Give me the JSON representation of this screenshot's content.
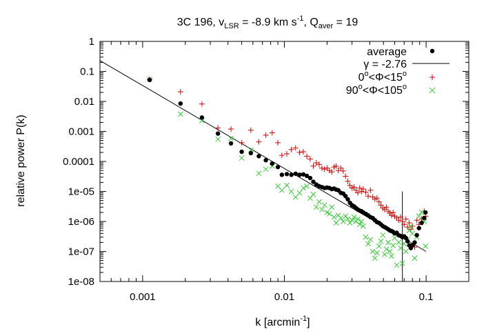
{
  "chart_data": {
    "type": "scatter",
    "title": {
      "prefix": "3C 196, v",
      "v_sub": "LSR",
      "mid": " = -8.9 km s",
      "sup": "-1",
      "q_text": ", Q",
      "q_sub": "aver",
      "q_val": " = 19"
    },
    "xlabel": {
      "main": "k [arcmin",
      "sup": "-1",
      "close": "]"
    },
    "ylabel": "relative power P(k)",
    "xscale": "log",
    "yscale": "log",
    "xlim": [
      0.0005,
      0.2
    ],
    "ylim": [
      1e-08,
      1
    ],
    "xticks": [
      {
        "value": 0.001,
        "label": "0.001"
      },
      {
        "value": 0.01,
        "label": "0.01"
      },
      {
        "value": 0.1,
        "label": "0.1"
      }
    ],
    "yticks": [
      {
        "value": 1,
        "label": "1"
      },
      {
        "value": 0.1,
        "label": "0.1"
      },
      {
        "value": 0.01,
        "label": "0.01"
      },
      {
        "value": 0.001,
        "label": "0.001"
      },
      {
        "value": 0.0001,
        "label": "0.0001"
      },
      {
        "value": 1e-05,
        "label": "1e-05"
      },
      {
        "value": 1e-06,
        "label": "1e-06"
      },
      {
        "value": 1e-07,
        "label": "1e-07"
      },
      {
        "value": 1e-08,
        "label": "1e-08"
      }
    ],
    "legend": {
      "placement": "top-right",
      "average": "average",
      "fit": {
        "gamma": "γ",
        "rest": " = -2.76"
      },
      "red": {
        "zero": "0",
        "deg": "o",
        "phi": "<Φ<15",
        "deg2": "o"
      },
      "green": {
        "ninety": "90",
        "deg": "o",
        "phi": "<Φ<105",
        "deg2": "o"
      }
    },
    "fit_line": {
      "name": "γ = -2.76",
      "slope": -2.76,
      "x": [
        0.0005,
        0.1
      ],
      "y": [
        0.23,
        1e-07
      ],
      "color": "#000000"
    },
    "cutoff_line": {
      "x": 0.068,
      "y_range": [
        1e-08,
        1e-05
      ],
      "color": "#000000"
    },
    "series": [
      {
        "name": "average",
        "marker": "dot",
        "color": "#000000",
        "points": [
          [
            0.00112,
            0.052
          ],
          [
            0.00185,
            0.0085
          ],
          [
            0.00262,
            0.0029
          ],
          [
            0.0034,
            0.00085
          ],
          [
            0.0042,
            0.0004
          ],
          [
            0.005,
            0.00021
          ],
          [
            0.0058,
            0.00019
          ],
          [
            0.0066,
            0.00015
          ],
          [
            0.0074,
            0.00011
          ],
          [
            0.0082,
            8.5e-05
          ],
          [
            0.009,
            6.5e-05
          ],
          [
            0.0096,
            3.6e-05
          ],
          [
            0.0104,
            3.8e-05
          ],
          [
            0.0112,
            3.6e-05
          ],
          [
            0.012,
            3.9e-05
          ],
          [
            0.0128,
            3.6e-05
          ],
          [
            0.0136,
            3.7e-05
          ],
          [
            0.0144,
            3.3e-05
          ],
          [
            0.0152,
            2.8e-05
          ],
          [
            0.016,
            2.1e-05
          ],
          [
            0.0168,
            1.7e-05
          ],
          [
            0.0176,
            1.5e-05
          ],
          [
            0.0184,
            1.4e-05
          ],
          [
            0.0192,
            1.3e-05
          ],
          [
            0.02,
            1.35e-05
          ],
          [
            0.0208,
            1.3e-05
          ],
          [
            0.0216,
            1.2e-05
          ],
          [
            0.0224,
            1.25e-05
          ],
          [
            0.0232,
            1.15e-05
          ],
          [
            0.024,
            1.1e-05
          ],
          [
            0.025,
            9e-06
          ],
          [
            0.026,
            8.5e-06
          ],
          [
            0.027,
            7e-06
          ],
          [
            0.028,
            5.5e-06
          ],
          [
            0.029,
            4.2e-06
          ],
          [
            0.03,
            3.5e-06
          ],
          [
            0.031,
            3.2e-06
          ],
          [
            0.032,
            2.8e-06
          ],
          [
            0.033,
            2.5e-06
          ],
          [
            0.034,
            2.3e-06
          ],
          [
            0.035,
            2.2e-06
          ],
          [
            0.036,
            2e-06
          ],
          [
            0.0375,
            1.8e-06
          ],
          [
            0.039,
            1.6e-06
          ],
          [
            0.0405,
            1.4e-06
          ],
          [
            0.042,
            1.3e-06
          ],
          [
            0.0435,
            1.1e-06
          ],
          [
            0.045,
            9.5e-07
          ],
          [
            0.0465,
            9e-07
          ],
          [
            0.048,
            8e-07
          ],
          [
            0.0495,
            7e-07
          ],
          [
            0.051,
            6.5e-07
          ],
          [
            0.0525,
            6e-07
          ],
          [
            0.054,
            5.5e-07
          ],
          [
            0.0555,
            5e-07
          ],
          [
            0.057,
            4.8e-07
          ],
          [
            0.0585,
            4.5e-07
          ],
          [
            0.06,
            4e-07
          ],
          [
            0.062,
            4.2e-07
          ],
          [
            0.064,
            3.5e-07
          ],
          [
            0.066,
            3.3e-07
          ],
          [
            0.068,
            3e-07
          ],
          [
            0.07,
            3.2e-07
          ],
          [
            0.072,
            2.8e-07
          ],
          [
            0.074,
            2.2e-07
          ],
          [
            0.076,
            1.6e-07
          ],
          [
            0.078,
            1.3e-07
          ],
          [
            0.08,
            1.6e-07
          ],
          [
            0.083,
            2e-07
          ],
          [
            0.086,
            3.5e-07
          ],
          [
            0.089,
            6e-07
          ],
          [
            0.093,
            9e-07
          ],
          [
            0.097,
            1.3e-06
          ],
          [
            0.099,
            2e-06
          ]
        ]
      },
      {
        "name": "0°<Φ<15°",
        "marker": "plus",
        "color": "#cc0000",
        "points": [
          [
            0.00112,
            0.055
          ],
          [
            0.00185,
            0.021
          ],
          [
            0.00262,
            0.0082
          ],
          [
            0.0034,
            0.0013
          ],
          [
            0.0042,
            0.0012
          ],
          [
            0.005,
            0.00042
          ],
          [
            0.0058,
            0.0011
          ],
          [
            0.0066,
            0.00045
          ],
          [
            0.0074,
            0.00075
          ],
          [
            0.0082,
            0.0009
          ],
          [
            0.009,
            0.00042
          ],
          [
            0.0096,
            0.00016
          ],
          [
            0.0104,
            0.00018
          ],
          [
            0.0112,
            0.00025
          ],
          [
            0.012,
            0.00028
          ],
          [
            0.0128,
            0.0002
          ],
          [
            0.0136,
            0.00021
          ],
          [
            0.0144,
            0.00015
          ],
          [
            0.0152,
            0.00012
          ],
          [
            0.016,
            7e-05
          ],
          [
            0.0168,
            9e-05
          ],
          [
            0.0176,
            8e-05
          ],
          [
            0.0184,
            6e-05
          ],
          [
            0.0192,
            5.5e-05
          ],
          [
            0.02,
            6e-05
          ],
          [
            0.0208,
            5e-05
          ],
          [
            0.0216,
            4.5e-05
          ],
          [
            0.0224,
            6.5e-05
          ],
          [
            0.0232,
            7e-05
          ],
          [
            0.024,
            5e-05
          ],
          [
            0.025,
            6e-05
          ],
          [
            0.026,
            4.8e-05
          ],
          [
            0.027,
            3.2e-05
          ],
          [
            0.028,
            2.2e-05
          ],
          [
            0.029,
            1.6e-05
          ],
          [
            0.03,
            1.3e-05
          ],
          [
            0.031,
            1.4e-05
          ],
          [
            0.032,
            1.1e-05
          ],
          [
            0.033,
            9e-06
          ],
          [
            0.034,
            1.3e-05
          ],
          [
            0.035,
            1e-05
          ],
          [
            0.036,
            1.2e-05
          ],
          [
            0.0375,
            9.5e-06
          ],
          [
            0.039,
            7e-06
          ],
          [
            0.0405,
            1.1e-05
          ],
          [
            0.042,
            6.5e-06
          ],
          [
            0.0435,
            5.5e-06
          ],
          [
            0.045,
            6e-06
          ],
          [
            0.0465,
            4.5e-06
          ],
          [
            0.048,
            3.5e-06
          ],
          [
            0.0495,
            2.8e-06
          ],
          [
            0.051,
            2.5e-06
          ],
          [
            0.0525,
            3e-06
          ],
          [
            0.054,
            2.2e-06
          ],
          [
            0.0555,
            1.9e-06
          ],
          [
            0.057,
            1.6e-06
          ],
          [
            0.0585,
            2e-06
          ],
          [
            0.06,
            1.5e-06
          ],
          [
            0.062,
            1.3e-06
          ],
          [
            0.064,
            1.1e-06
          ],
          [
            0.066,
            1.4e-06
          ],
          [
            0.068,
            1e-06
          ],
          [
            0.07,
            8e-07
          ],
          [
            0.072,
            1.2e-06
          ],
          [
            0.074,
            6.5e-07
          ],
          [
            0.076,
            9e-07
          ],
          [
            0.078,
            5.5e-07
          ],
          [
            0.08,
            7e-07
          ],
          [
            0.083,
            1.4e-07
          ],
          [
            0.086,
            1.1e-06
          ],
          [
            0.089,
            8e-07
          ],
          [
            0.093,
            1.2e-06
          ],
          [
            0.097,
            2.2e-06
          ],
          [
            0.099,
            1.5e-06
          ]
        ]
      },
      {
        "name": "90°<Φ<105°",
        "marker": "cross",
        "color": "#33cc33",
        "points": [
          [
            0.00112,
            0.055
          ],
          [
            0.00185,
            0.0038
          ],
          [
            0.00262,
            0.0023
          ],
          [
            0.0034,
            0.00055
          ],
          [
            0.0042,
            0.00058
          ],
          [
            0.005,
            0.00013
          ],
          [
            0.0058,
            0.00024
          ],
          [
            0.0066,
            4e-05
          ],
          [
            0.0074,
            5.5e-05
          ],
          [
            0.0082,
            7e-05
          ],
          [
            0.009,
            1.5e-05
          ],
          [
            0.0096,
            1.1e-05
          ],
          [
            0.0104,
            1.6e-05
          ],
          [
            0.0112,
            1e-05
          ],
          [
            0.012,
            6.5e-06
          ],
          [
            0.0128,
            9e-06
          ],
          [
            0.0136,
            1.3e-05
          ],
          [
            0.0144,
            1.5e-05
          ],
          [
            0.0152,
            6e-06
          ],
          [
            0.016,
            8e-06
          ],
          [
            0.0168,
            3e-06
          ],
          [
            0.0176,
            4.5e-06
          ],
          [
            0.0184,
            2.5e-06
          ],
          [
            0.0192,
            3.5e-06
          ],
          [
            0.02,
            2e-06
          ],
          [
            0.0208,
            1.8e-06
          ],
          [
            0.0216,
            3e-06
          ],
          [
            0.0224,
            1.4e-06
          ],
          [
            0.0232,
            9e-07
          ],
          [
            0.024,
            1.6e-06
          ],
          [
            0.025,
            1.3e-06
          ],
          [
            0.026,
            1e-06
          ],
          [
            0.027,
            1.5e-06
          ],
          [
            0.028,
            1.2e-06
          ],
          [
            0.029,
            9e-07
          ],
          [
            0.03,
            1.1e-06
          ],
          [
            0.031,
            1.4e-06
          ],
          [
            0.032,
            1e-06
          ],
          [
            0.033,
            1.2e-06
          ],
          [
            0.034,
            8e-07
          ],
          [
            0.035,
            1e-06
          ],
          [
            0.036,
            7e-07
          ],
          [
            0.0375,
            3e-07
          ],
          [
            0.039,
            1.8e-07
          ],
          [
            0.0405,
            2.5e-07
          ],
          [
            0.042,
            1e-07
          ],
          [
            0.0435,
            6e-08
          ],
          [
            0.045,
            9e-08
          ],
          [
            0.0465,
            1.5e-07
          ],
          [
            0.048,
            2.2e-07
          ],
          [
            0.0495,
            3.5e-07
          ],
          [
            0.051,
            8e-08
          ],
          [
            0.0525,
            1.2e-07
          ],
          [
            0.054,
            2e-07
          ],
          [
            0.0555,
            1e-07
          ],
          [
            0.057,
            7e-08
          ],
          [
            0.0585,
            1.6e-07
          ],
          [
            0.06,
            2.8e-07
          ],
          [
            0.062,
            3.5e-08
          ],
          [
            0.064,
            2e-07
          ],
          [
            0.066,
            1.3e-07
          ],
          [
            0.068,
            4e-08
          ],
          [
            0.07,
            1.8e-07
          ],
          [
            0.072,
            1e-07
          ],
          [
            0.074,
            2.5e-07
          ],
          [
            0.076,
            5e-07
          ],
          [
            0.078,
            7e-07
          ],
          [
            0.08,
            4e-07
          ],
          [
            0.083,
            6e-08
          ],
          [
            0.086,
            3e-07
          ],
          [
            0.089,
            1.5e-06
          ],
          [
            0.093,
            2e-06
          ],
          [
            0.097,
            1e-06
          ],
          [
            0.099,
            1.5e-07
          ]
        ]
      }
    ]
  }
}
